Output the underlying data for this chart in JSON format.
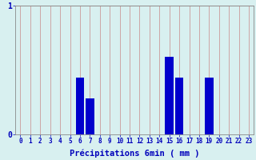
{
  "categories": [
    0,
    1,
    2,
    3,
    4,
    5,
    6,
    7,
    8,
    9,
    10,
    11,
    12,
    13,
    14,
    15,
    16,
    17,
    18,
    19,
    20,
    21,
    22,
    23
  ],
  "values": [
    0,
    0,
    0,
    0,
    0,
    0,
    0.44,
    0.28,
    0,
    0,
    0,
    0,
    0,
    0,
    0,
    0.6,
    0.44,
    0,
    0,
    0.44,
    0,
    0,
    0,
    0
  ],
  "bar_color": "#0000cc",
  "bg_color": "#d8f0f0",
  "grid_color": "#cc9999",
  "axis_color": "#0000bb",
  "xlabel": "Précipitations 6min ( mm )",
  "xlabel_fontsize": 7.5,
  "tick_fontsize": 5.5,
  "ylim": [
    0,
    1
  ],
  "yticks": [
    0,
    1
  ],
  "xlim": [
    -0.5,
    23.5
  ]
}
